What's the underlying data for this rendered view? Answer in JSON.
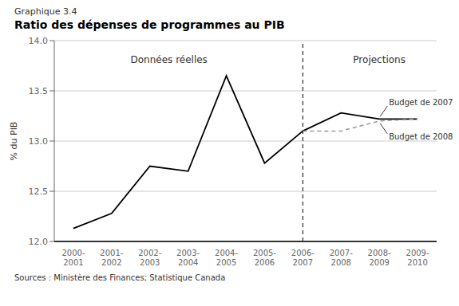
{
  "chart_data": {
    "type": "line",
    "title": "Ratio des dépenses de programmes au PIB",
    "subtitle": "Graphique 3.4",
    "ylabel": "% du PIB",
    "source": "Sources : Ministère des Finances; Statistique Canada",
    "categories": [
      "2000-\n2001",
      "2001-\n2002",
      "2002-\n2003",
      "2003-\n2004",
      "2004-\n2005",
      "2005-\n2006",
      "2006-\n2007",
      "2007-\n2008",
      "2008-\n2009",
      "2009-\n2010"
    ],
    "series": [
      {
        "color": "#000000",
        "line_style": "solid",
        "values": [
          12.13,
          12.28,
          12.75,
          12.7,
          13.65,
          12.78,
          13.1,
          null,
          null,
          null
        ]
      },
      {
        "color": "#000000",
        "line_style": "solid",
        "values": [
          null,
          null,
          null,
          null,
          null,
          null,
          13.1,
          13.28,
          13.22,
          13.22
        ]
      },
      {
        "color": "#999999",
        "line_style": "dashed",
        "values": [
          null,
          null,
          null,
          null,
          null,
          null,
          13.1,
          13.1,
          13.2,
          13.22
        ]
      }
    ],
    "ylim": [
      12.0,
      14.0
    ],
    "yticks": [
      {
        "value": 12.0,
        "label": "12.0"
      },
      12.5,
      {
        "value": 13.0,
        "label": "13.0"
      },
      13.5,
      {
        "value": 14.0,
        "label": "14.0"
      }
    ],
    "grid": true,
    "vline": "2006-\n2007",
    "annotations": [
      "Données réelles",
      "Projections",
      "Budget de 2007",
      "Budget de 2008"
    ]
  }
}
